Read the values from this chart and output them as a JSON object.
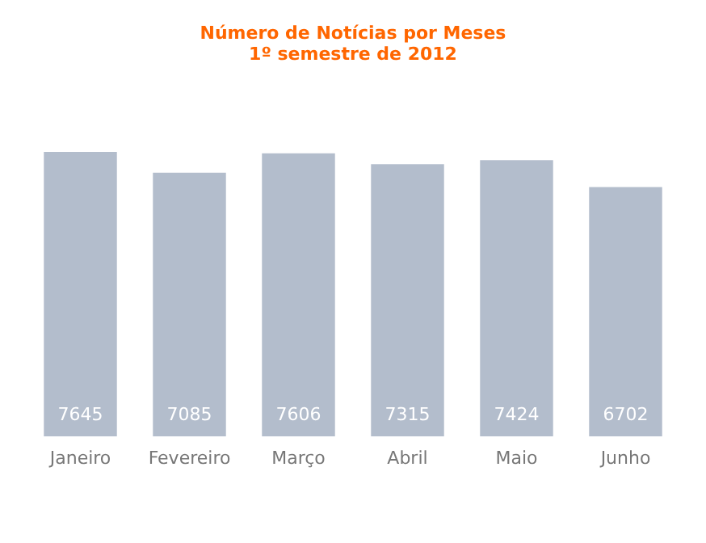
{
  "chart_data": {
    "type": "bar",
    "title": "Número de Notícias por Meses",
    "subtitle": "1º semestre de 2012",
    "categories": [
      "Janeiro",
      "Fevereiro",
      "Março",
      "Abril",
      "Maio",
      "Junho"
    ],
    "values": [
      7645,
      7085,
      7606,
      7315,
      7424,
      6702
    ],
    "color": "#b3bdcc",
    "data_labels": true
  }
}
